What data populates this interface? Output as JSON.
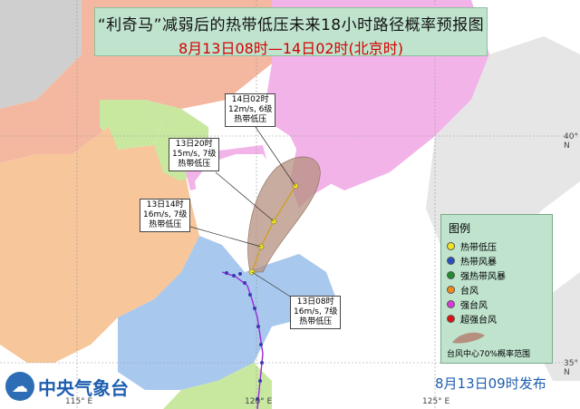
{
  "title": {
    "line1": "“利奇马”减弱后的热带低压未来18小时路径概率预报图",
    "line2": "8月13日08时—14日02时(北京时)"
  },
  "forecast_points": [
    {
      "time": "14日02时",
      "wind": "12m/s, 6级",
      "category": "热带低压"
    },
    {
      "time": "13日20时",
      "wind": "15m/s, 7级",
      "category": "热带低压"
    },
    {
      "time": "13日14时",
      "wind": "16m/s, 7级",
      "category": "热带低压"
    },
    {
      "time": "13日08时",
      "wind": "16m/s, 7级",
      "category": "热带低压"
    }
  ],
  "legend": {
    "title": "图例",
    "items": [
      {
        "label": "热带低压",
        "color": "#f2e21f"
      },
      {
        "label": "热带风暴",
        "color": "#2a4fc4"
      },
      {
        "label": "强热带风暴",
        "color": "#1f8a2e"
      },
      {
        "label": "台风",
        "color": "#f28a1a"
      },
      {
        "label": "强台风",
        "color": "#d83bd8"
      },
      {
        "label": "超强台风",
        "color": "#e01010"
      }
    ],
    "area_label": "台风中心70%概率范围"
  },
  "logo_text": "中央气象台",
  "issued": "8月13日09时发布",
  "longitude_ticks": [
    "115° E",
    "120° E",
    "125° E"
  ],
  "latitude_ticks": [
    "40° N",
    "35° N"
  ],
  "colors": {
    "sea": "#ffffff",
    "province_pink": "#f2b3e8",
    "province_green": "#c8e8a0",
    "province_orange": "#f7c69a",
    "province_blue": "#a8c8ee",
    "province_salmon": "#f4b7a0",
    "track_probability": "#b5907f",
    "accent_red": "#d40000",
    "brand_blue": "#1f5fb0"
  }
}
